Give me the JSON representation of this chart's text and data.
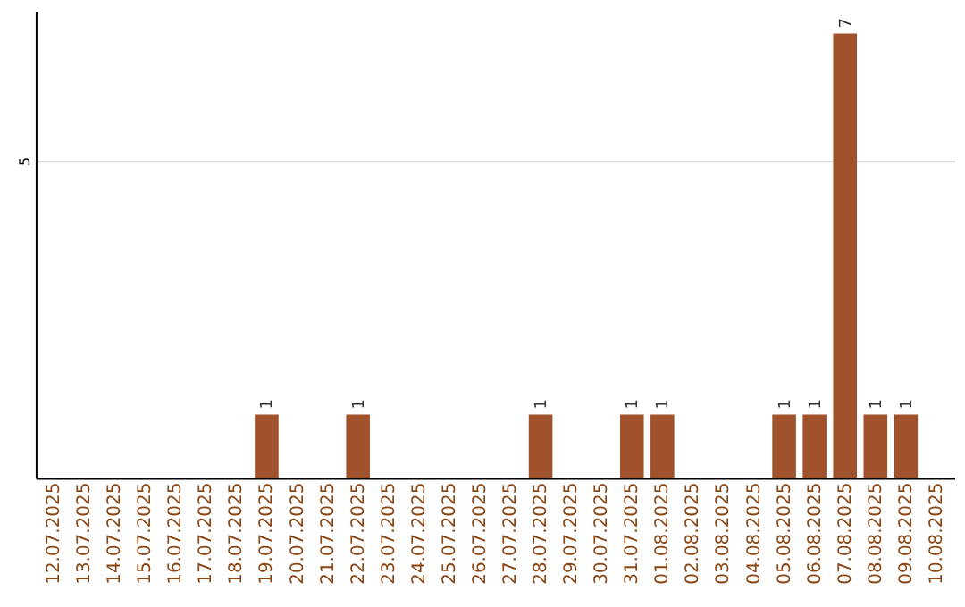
{
  "chart_data": {
    "type": "bar",
    "categories": [
      "12.07.2025",
      "13.07.2025",
      "14.07.2025",
      "15.07.2025",
      "16.07.2025",
      "17.07.2025",
      "18.07.2025",
      "19.07.2025",
      "20.07.2025",
      "21.07.2025",
      "22.07.2025",
      "23.07.2025",
      "24.07.2025",
      "25.07.2025",
      "26.07.2025",
      "27.07.2025",
      "28.07.2025",
      "29.07.2025",
      "30.07.2025",
      "31.07.2025",
      "01.08.2025",
      "02.08.2025",
      "03.08.2025",
      "04.08.2025",
      "05.08.2025",
      "06.08.2025",
      "07.08.2025",
      "08.08.2025",
      "09.08.2025",
      "10.08.2025"
    ],
    "values": [
      0,
      0,
      0,
      0,
      0,
      0,
      0,
      1,
      0,
      0,
      1,
      0,
      0,
      0,
      0,
      0,
      1,
      0,
      0,
      1,
      1,
      0,
      0,
      0,
      1,
      1,
      7,
      1,
      1,
      0
    ],
    "value_labels": [
      null,
      null,
      null,
      null,
      null,
      null,
      null,
      "1",
      null,
      null,
      "1",
      null,
      null,
      null,
      null,
      null,
      "1",
      null,
      null,
      "1",
      "1",
      null,
      null,
      null,
      "1",
      "1",
      "7",
      "1",
      "1",
      null
    ],
    "color": "#a0522d",
    "ylim": [
      0,
      7.35
    ],
    "yticks": [
      5
    ],
    "grid": "y"
  }
}
